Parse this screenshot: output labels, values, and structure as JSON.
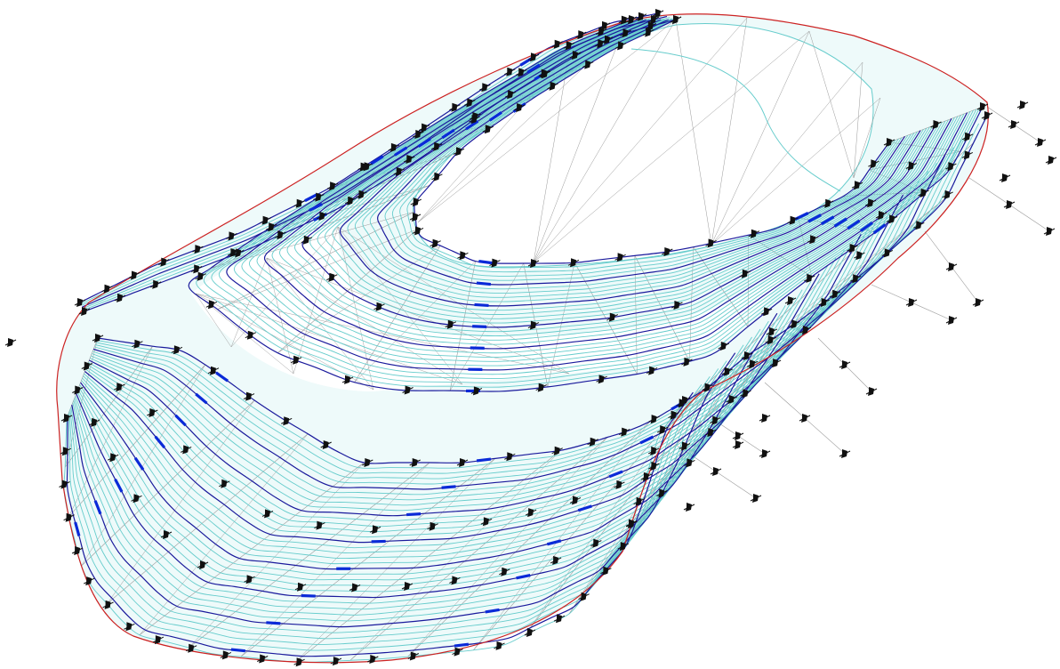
{
  "view": {
    "background": "#ffffff",
    "colors": {
      "tin_edge": "#9a9a9a",
      "minor_contour": "#66cccc",
      "major_contour": "#1a1a9c",
      "contour_label_tick": "#0a2ad8",
      "boundary": "#cc2222",
      "survey_point": "#111111",
      "fill": "#e8f8f8"
    },
    "layers": [
      {
        "name": "tin-triangulation",
        "visible": true
      },
      {
        "name": "minor-contours",
        "visible": true
      },
      {
        "name": "major-contours",
        "visible": true
      },
      {
        "name": "boundary-breakline",
        "visible": true
      },
      {
        "name": "survey-points",
        "visible": true
      }
    ]
  }
}
